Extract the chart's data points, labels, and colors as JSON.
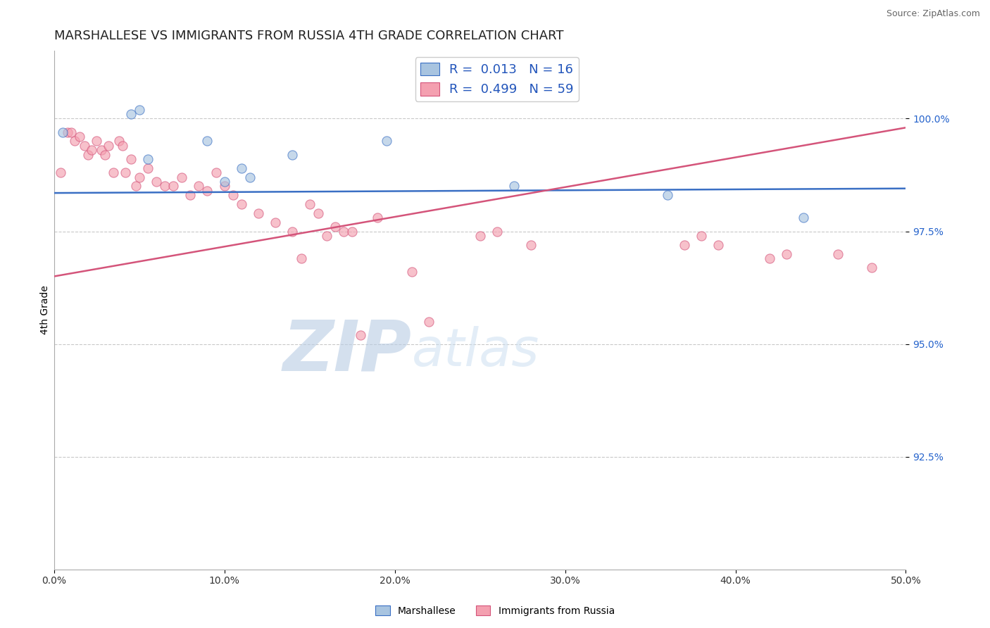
{
  "title": "MARSHALLESE VS IMMIGRANTS FROM RUSSIA 4TH GRADE CORRELATION CHART",
  "source_text": "Source: ZipAtlas.com",
  "ylabel": "4th Grade",
  "xlim": [
    0.0,
    0.5
  ],
  "ylim": [
    90.0,
    101.5
  ],
  "xtick_labels": [
    "0.0%",
    "10.0%",
    "20.0%",
    "30.0%",
    "40.0%",
    "50.0%"
  ],
  "xtick_vals": [
    0.0,
    0.1,
    0.2,
    0.3,
    0.4,
    0.5
  ],
  "ytick_labels": [
    "92.5%",
    "95.0%",
    "97.5%",
    "100.0%"
  ],
  "ytick_vals": [
    92.5,
    95.0,
    97.5,
    100.0
  ],
  "watermark": "ZIPatlas",
  "legend_entries": [
    {
      "label": "R =  0.013   N = 16",
      "color": "#a8c4e0"
    },
    {
      "label": "R =  0.499   N = 59",
      "color": "#f4a0b0"
    }
  ],
  "blue_scatter_x": [
    0.005,
    0.045,
    0.05,
    0.055,
    0.09,
    0.1,
    0.11,
    0.115,
    0.14,
    0.195,
    0.27,
    0.36,
    0.44
  ],
  "blue_scatter_y": [
    99.7,
    100.1,
    100.2,
    99.1,
    99.5,
    98.6,
    98.9,
    98.7,
    99.2,
    99.5,
    98.5,
    98.3,
    97.8
  ],
  "pink_scatter_x": [
    0.004,
    0.008,
    0.01,
    0.012,
    0.015,
    0.018,
    0.02,
    0.022,
    0.025,
    0.028,
    0.03,
    0.032,
    0.035,
    0.038,
    0.04,
    0.042,
    0.045,
    0.048,
    0.05,
    0.055,
    0.06,
    0.065,
    0.07,
    0.075,
    0.08,
    0.085,
    0.09,
    0.095,
    0.1,
    0.105,
    0.11,
    0.12,
    0.13,
    0.14,
    0.145,
    0.15,
    0.155,
    0.16,
    0.165,
    0.17,
    0.175,
    0.18,
    0.19,
    0.21,
    0.22,
    0.25,
    0.26,
    0.28,
    0.37,
    0.38,
    0.39,
    0.42,
    0.43,
    0.46,
    0.48
  ],
  "pink_scatter_y": [
    98.8,
    99.7,
    99.7,
    99.5,
    99.6,
    99.4,
    99.2,
    99.3,
    99.5,
    99.3,
    99.2,
    99.4,
    98.8,
    99.5,
    99.4,
    98.8,
    99.1,
    98.5,
    98.7,
    98.9,
    98.6,
    98.5,
    98.5,
    98.7,
    98.3,
    98.5,
    98.4,
    98.8,
    98.5,
    98.3,
    98.1,
    97.9,
    97.7,
    97.5,
    96.9,
    98.1,
    97.9,
    97.4,
    97.6,
    97.5,
    97.5,
    95.2,
    97.8,
    96.6,
    95.5,
    97.4,
    97.5,
    97.2,
    97.2,
    97.4,
    97.2,
    96.9,
    97.0,
    97.0,
    96.7
  ],
  "blue_line_color": "#3a6fc4",
  "pink_line_color": "#d4547a",
  "blue_scatter_color": "#a8c4e0",
  "pink_scatter_color": "#f4a0b0",
  "scatter_size": 90,
  "scatter_alpha": 0.65,
  "background_color": "#ffffff",
  "grid_color": "#bbbbbb",
  "title_fontsize": 13,
  "axis_label_fontsize": 10,
  "tick_fontsize": 10,
  "watermark_color": "#ccd8ee",
  "watermark_fontsize": 72,
  "legend_fontsize": 13,
  "source_fontsize": 9,
  "blue_line_y0": 98.35,
  "blue_line_y1": 98.45,
  "pink_line_x0": 0.0,
  "pink_line_y0": 96.5,
  "pink_line_x1": 0.5,
  "pink_line_y1": 99.8
}
